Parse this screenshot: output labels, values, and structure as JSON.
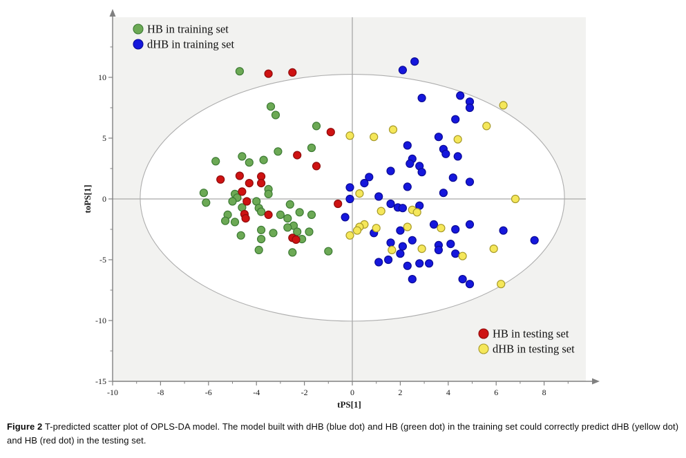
{
  "figure": {
    "caption_label": "Figure 2",
    "caption_text": "T-predicted scatter plot of OPLS-DA model. The model built with dHB (blue dot) and HB (green dot) in the training set could correctly predict dHB (yellow dot) and HB (red dot) in the testing set."
  },
  "chart_data": {
    "type": "scatter",
    "title": "",
    "xlabel": "tPS[1]",
    "ylabel": "toPS[1]",
    "xlim": [
      -10,
      9.74
    ],
    "ylim": [
      -15,
      14.94
    ],
    "x_major_ticks": [
      -10,
      -8,
      -6,
      -4,
      -2,
      0,
      2,
      4,
      6,
      8
    ],
    "x_minor_ticks": [
      -9,
      -7,
      -5,
      -3,
      -1,
      1,
      3,
      5,
      7,
      9
    ],
    "y_major_ticks": [
      -15,
      -10,
      -5,
      0,
      5,
      10
    ],
    "y_minor_ticks": [
      -12.5,
      -7.5,
      -2.5,
      2.5,
      7.5,
      12.5
    ],
    "grid": false,
    "zero_lines": true,
    "hotelling_ellipse": {
      "cx": 0,
      "cy": 0.1,
      "rx": 8.85,
      "ry": 10.15
    },
    "colors": {
      "plot_bg": "#F2F2F0",
      "axis": "#808080",
      "tick_label": "#1A1A1A",
      "zero_line": "#A8A8A8",
      "ellipse_stroke": "#ADADAD",
      "ellipse_fill": "#FFFFFF",
      "legend_text": "#111111"
    },
    "series": [
      {
        "id": "hb-training",
        "name": "HB in training set",
        "marker_color": "#6CA955",
        "marker_stroke": "#3C7A33",
        "points": [
          [
            -4.7,
            10.5
          ],
          [
            -3.4,
            7.6
          ],
          [
            -3.2,
            6.9
          ],
          [
            -1.5,
            6.0
          ],
          [
            -1.7,
            4.2
          ],
          [
            -3.1,
            3.9
          ],
          [
            -4.6,
            3.5
          ],
          [
            -5.7,
            3.1
          ],
          [
            -4.3,
            3.0
          ],
          [
            -3.7,
            3.2
          ],
          [
            -6.2,
            0.5
          ],
          [
            -6.1,
            -0.3
          ],
          [
            -4.9,
            0.4
          ],
          [
            -4.8,
            0.1
          ],
          [
            -5.0,
            -0.2
          ],
          [
            -4.0,
            -0.2
          ],
          [
            -3.5,
            0.8
          ],
          [
            -3.5,
            0.4
          ],
          [
            -4.6,
            -0.7
          ],
          [
            -3.9,
            -0.75
          ],
          [
            -3.8,
            -1.05
          ],
          [
            -5.2,
            -1.3
          ],
          [
            -5.3,
            -1.8
          ],
          [
            -4.9,
            -1.9
          ],
          [
            -3.0,
            -1.3
          ],
          [
            -2.7,
            -1.6
          ],
          [
            -2.2,
            -1.1
          ],
          [
            -1.7,
            -1.3
          ],
          [
            -2.6,
            -0.45
          ],
          [
            -2.45,
            -2.2
          ],
          [
            -2.7,
            -2.35
          ],
          [
            -2.3,
            -2.7
          ],
          [
            -3.8,
            -2.55
          ],
          [
            -3.3,
            -2.8
          ],
          [
            -2.1,
            -3.3
          ],
          [
            -1.8,
            -2.7
          ],
          [
            -4.65,
            -3.0
          ],
          [
            -3.8,
            -3.3
          ],
          [
            -3.9,
            -4.2
          ],
          [
            -2.5,
            -4.4
          ],
          [
            -1.0,
            -4.3
          ]
        ]
      },
      {
        "id": "dhb-training",
        "name": "dHB in training set",
        "marker_color": "#1517DC",
        "marker_stroke": "#0A0A96",
        "points": [
          [
            2.6,
            11.3
          ],
          [
            2.1,
            10.6
          ],
          [
            2.9,
            8.3
          ],
          [
            4.5,
            8.5
          ],
          [
            4.9,
            8.0
          ],
          [
            4.9,
            7.5
          ],
          [
            4.3,
            6.55
          ],
          [
            3.6,
            5.1
          ],
          [
            2.3,
            4.4
          ],
          [
            3.8,
            4.1
          ],
          [
            3.9,
            3.7
          ],
          [
            2.5,
            3.3
          ],
          [
            4.4,
            3.5
          ],
          [
            1.6,
            2.3
          ],
          [
            2.4,
            2.9
          ],
          [
            2.8,
            2.7
          ],
          [
            2.9,
            2.2
          ],
          [
            0.7,
            1.8
          ],
          [
            0.5,
            1.3
          ],
          [
            4.2,
            1.75
          ],
          [
            4.9,
            1.4
          ],
          [
            2.3,
            1.0
          ],
          [
            -0.1,
            0.95
          ],
          [
            -0.1,
            0.0
          ],
          [
            3.8,
            0.5
          ],
          [
            1.1,
            0.2
          ],
          [
            1.6,
            -0.4
          ],
          [
            1.9,
            -0.7
          ],
          [
            2.1,
            -0.75
          ],
          [
            2.8,
            -0.55
          ],
          [
            -0.3,
            -1.5
          ],
          [
            0.9,
            -2.8
          ],
          [
            2.0,
            -2.6
          ],
          [
            3.4,
            -2.1
          ],
          [
            4.3,
            -2.5
          ],
          [
            4.9,
            -2.1
          ],
          [
            6.3,
            -2.6
          ],
          [
            7.6,
            -3.4
          ],
          [
            4.1,
            -3.7
          ],
          [
            3.6,
            -3.8
          ],
          [
            3.6,
            -4.2
          ],
          [
            2.5,
            -3.4
          ],
          [
            1.6,
            -3.6
          ],
          [
            2.1,
            -3.9
          ],
          [
            2.0,
            -4.5
          ],
          [
            4.3,
            -4.5
          ],
          [
            1.1,
            -5.2
          ],
          [
            1.5,
            -5.0
          ],
          [
            2.3,
            -5.5
          ],
          [
            2.8,
            -5.3
          ],
          [
            3.2,
            -5.3
          ],
          [
            2.5,
            -6.6
          ],
          [
            4.6,
            -6.6
          ],
          [
            4.9,
            -7.0
          ]
        ]
      },
      {
        "id": "dhb-testing",
        "name": "dHB in testing set",
        "marker_color": "#F5E75A",
        "marker_stroke": "#A79A28",
        "points": [
          [
            -0.1,
            5.2
          ],
          [
            0.9,
            5.1
          ],
          [
            1.7,
            5.7
          ],
          [
            6.3,
            7.7
          ],
          [
            5.6,
            6.0
          ],
          [
            4.4,
            4.9
          ],
          [
            0.3,
            0.45
          ],
          [
            6.8,
            0.0
          ],
          [
            1.2,
            -1.0
          ],
          [
            2.5,
            -0.9
          ],
          [
            2.7,
            -1.1
          ],
          [
            0.5,
            -2.1
          ],
          [
            0.3,
            -2.3
          ],
          [
            0.2,
            -2.6
          ],
          [
            -0.1,
            -3.0
          ],
          [
            1.0,
            -2.4
          ],
          [
            2.3,
            -2.3
          ],
          [
            3.7,
            -2.4
          ],
          [
            1.65,
            -4.2
          ],
          [
            2.9,
            -4.1
          ],
          [
            5.9,
            -4.1
          ],
          [
            4.6,
            -4.7
          ],
          [
            6.2,
            -7.0
          ]
        ]
      },
      {
        "id": "hb-testing",
        "name": "HB in testing set",
        "marker_color": "#CE1212",
        "marker_stroke": "#8F0B0B",
        "points": [
          [
            -3.5,
            10.3
          ],
          [
            -2.5,
            10.4
          ],
          [
            -0.9,
            5.5
          ],
          [
            -2.3,
            3.6
          ],
          [
            -1.5,
            2.7
          ],
          [
            -5.5,
            1.6
          ],
          [
            -4.7,
            1.9
          ],
          [
            -4.3,
            1.3
          ],
          [
            -3.8,
            1.85
          ],
          [
            -3.8,
            1.3
          ],
          [
            -4.6,
            0.6
          ],
          [
            -4.4,
            -0.2
          ],
          [
            -4.5,
            -1.25
          ],
          [
            -4.45,
            -1.6
          ],
          [
            -3.5,
            -1.3
          ],
          [
            -0.6,
            -0.4
          ],
          [
            -2.5,
            -3.2
          ],
          [
            -2.35,
            -3.35
          ]
        ]
      }
    ],
    "legends": [
      {
        "position": "top-left",
        "series_ids": [
          "hb-training",
          "dhb-training"
        ]
      },
      {
        "position": "bottom-right",
        "series_ids": [
          "hb-testing",
          "dhb-testing"
        ]
      }
    ]
  }
}
